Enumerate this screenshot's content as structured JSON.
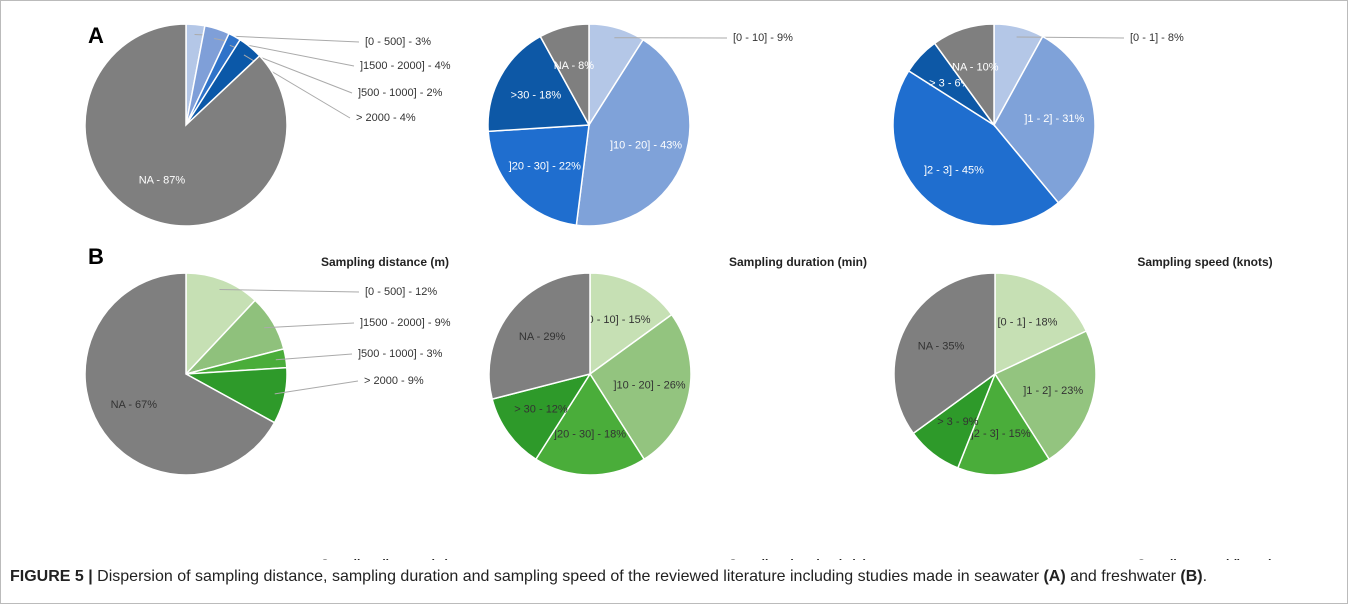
{
  "panels": [
    "A",
    "B"
  ],
  "caption": {
    "label": "FIGURE 5 |",
    "text1": " Dispersion of sampling distance, sampling duration and sampling speed of the reviewed literature including studies made in seawater ",
    "a": "(A)",
    "text2": " and freshwater ",
    "b": "(B)",
    "end": "."
  },
  "chart_data": [
    {
      "type": "pie",
      "title": "Sampling distance (m)",
      "values": [
        3,
        4,
        2,
        4,
        87
      ],
      "value_labels": [
        "[0 - 500] - 3%",
        "]1500 - 2000] - 4%",
        "]500 - 1000] - 2%",
        "> 2000 - 4%",
        "NA - 87%"
      ],
      "colors": [
        "#b4c7e7",
        "#7f9fd8",
        "#2f73c9",
        "#0b58a8",
        "#7f7f7f"
      ]
    },
    {
      "type": "pie",
      "title": "Sampling duration (min)",
      "values": [
        9,
        43,
        22,
        18,
        8
      ],
      "value_labels": [
        "[0 - 10] - 9%",
        "]10 - 20] - 43%",
        "]20 - 30] - 22%",
        ">30 - 18%",
        "NA - 8%"
      ],
      "colors": [
        "#b4c7e7",
        "#7fa2d9",
        "#1f6ecf",
        "#0d58a6",
        "#7f7f7f"
      ]
    },
    {
      "type": "pie",
      "title": "Sampling speed (knots)",
      "values": [
        8,
        31,
        45,
        6,
        10
      ],
      "value_labels": [
        "[0 - 1] - 8%",
        "]1 - 2] - 31%",
        "]2 - 3] - 45%",
        "> 3 - 6%",
        "NA - 10%"
      ],
      "colors": [
        "#b4c7e7",
        "#7fa2d9",
        "#1f6ecf",
        "#0d58a6",
        "#7f7f7f"
      ]
    },
    {
      "type": "pie",
      "title": "Sampling distance (m)",
      "values": [
        12,
        9,
        3,
        9,
        67
      ],
      "value_labels": [
        "[0 - 500] - 12%",
        "]1500 - 2000] - 9%",
        "]500 - 1000] - 3%",
        "> 2000 - 9%",
        "NA - 67%"
      ],
      "colors": [
        "#c6e0b4",
        "#8fc17c",
        "#4aad3a",
        "#2e9a2a",
        "#7f7f7f"
      ]
    },
    {
      "type": "pie",
      "title": "Sampling duration (min)",
      "values": [
        15,
        26,
        18,
        12,
        29
      ],
      "value_labels": [
        "[0 - 10] - 15%",
        "]10 - 20] - 26%",
        "]20 - 30] - 18%",
        "> 30 - 12%",
        "NA - 29%"
      ],
      "colors": [
        "#c6e0b4",
        "#93c47f",
        "#4aad3a",
        "#2e9a2a",
        "#7f7f7f"
      ]
    },
    {
      "type": "pie",
      "title": "Sampling speed (knots)",
      "values": [
        18,
        23,
        15,
        9,
        35
      ],
      "value_labels": [
        "[0 - 1] - 18%",
        "]1 - 2] - 23%",
        "]2 - 3] - 15%",
        "> 3 - 9%",
        "NA - 35%"
      ],
      "colors": [
        "#c6e0b4",
        "#93c47f",
        "#4aad3a",
        "#2e9a2a",
        "#7f7f7f"
      ]
    }
  ]
}
